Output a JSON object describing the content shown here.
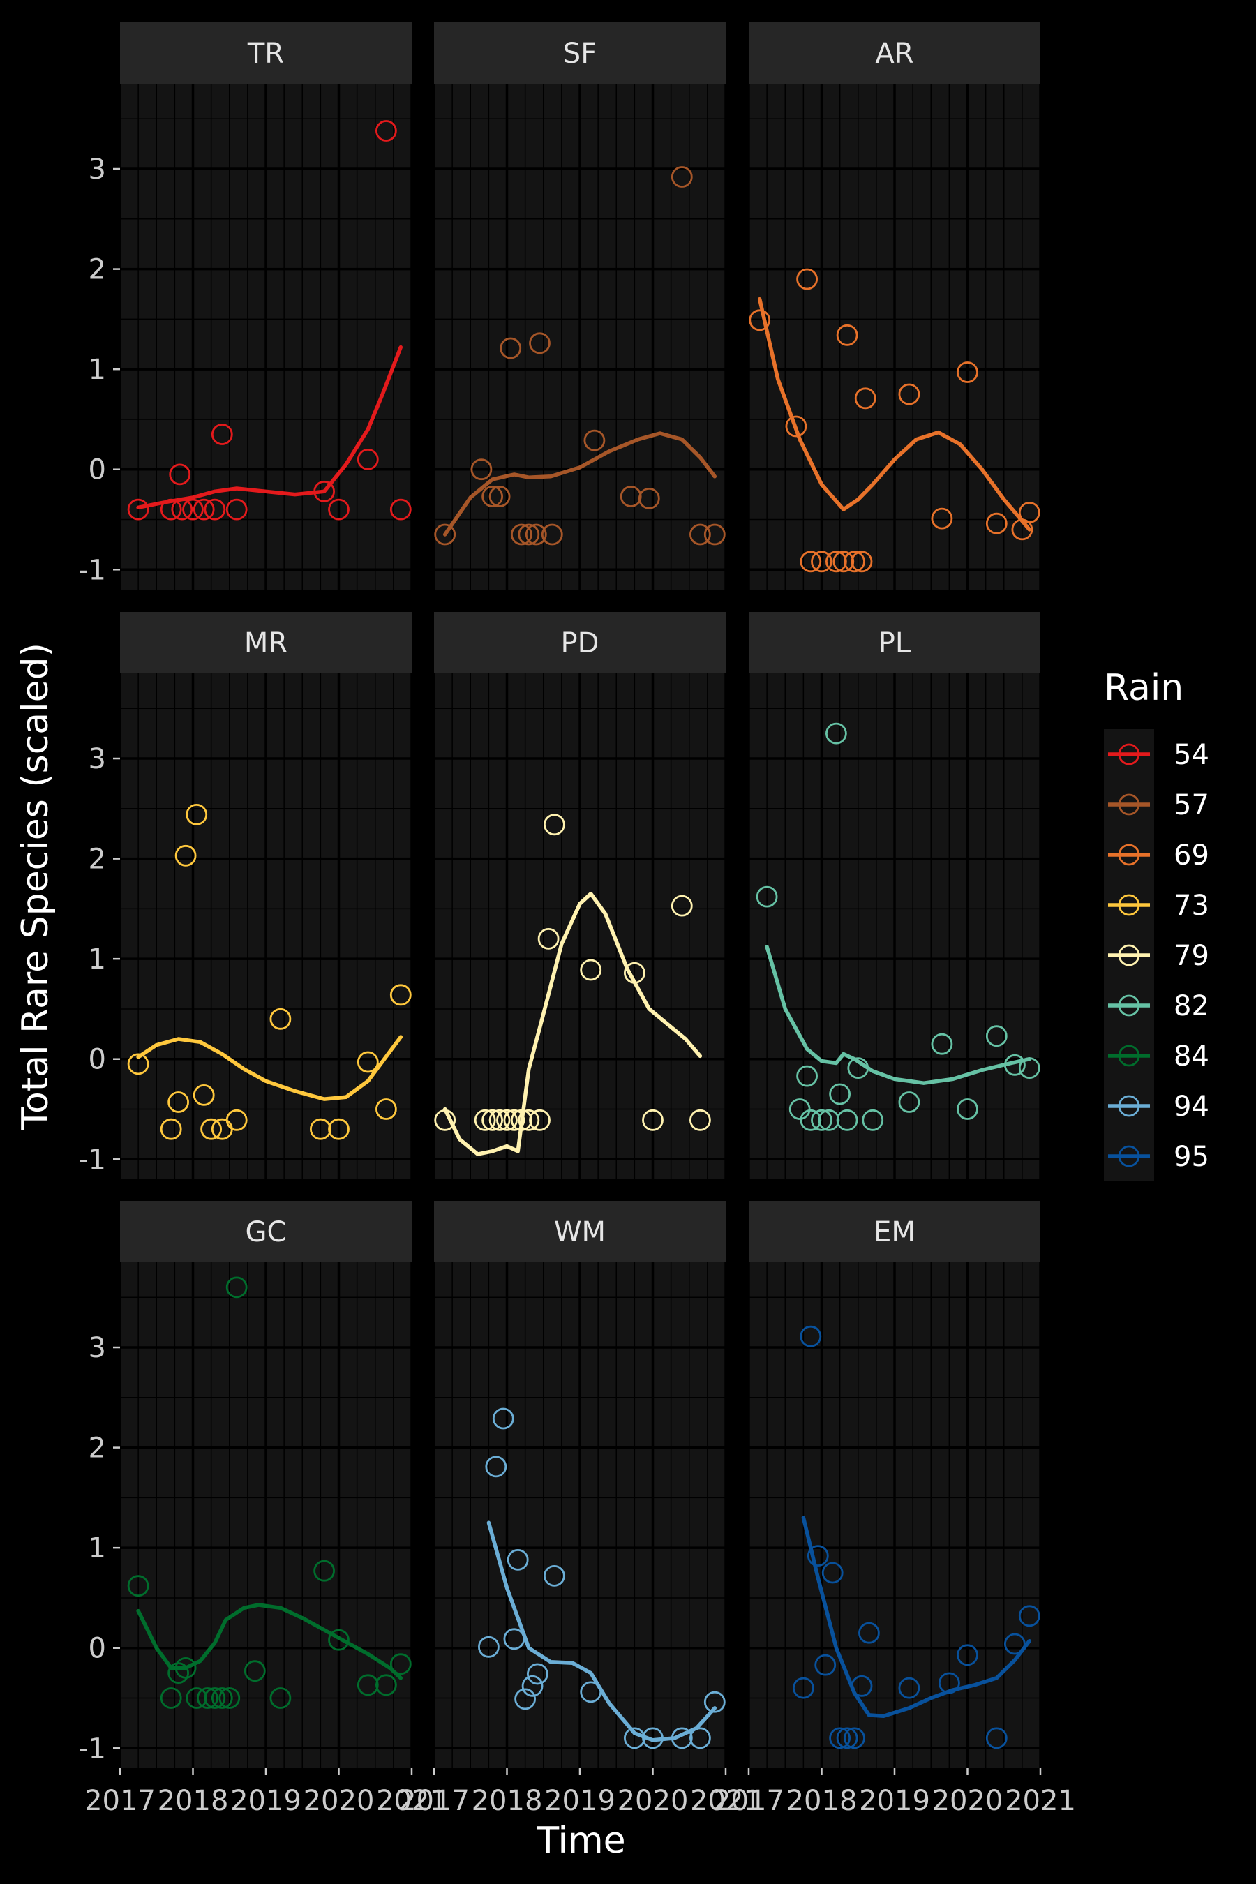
{
  "chart_data": {
    "type": "scatter",
    "facet_wrap": "3x3",
    "xlabel": "Time",
    "ylabel": "Total Rare Species (scaled)",
    "x_ticks": [
      "2017",
      "2018",
      "2019",
      "2020",
      "2021"
    ],
    "y_ticks": [
      "-1",
      "0",
      "1",
      "2",
      "3"
    ],
    "xlim": [
      2017,
      2021
    ],
    "ylim": [
      -1.2,
      3.85
    ],
    "grid": true,
    "legend": {
      "title": "Rain",
      "placement": "right",
      "entries": [
        "54",
        "57",
        "69",
        "73",
        "79",
        "82",
        "84",
        "94",
        "95"
      ]
    },
    "colors": {
      "54": "#E41A1C",
      "57": "#A65628",
      "69": "#E8722A",
      "73": "#FFC83D",
      "79": "#FFF2B0",
      "82": "#66C2A5",
      "84": "#006D2C",
      "94": "#6BAED6",
      "95": "#08519C"
    },
    "series": [
      {
        "name": "TR",
        "rain": "54",
        "points": [
          [
            2017.25,
            -0.4
          ],
          [
            2017.7,
            -0.4
          ],
          [
            2017.82,
            -0.05
          ],
          [
            2017.85,
            -0.4
          ],
          [
            2018.0,
            -0.4
          ],
          [
            2018.15,
            -0.4
          ],
          [
            2018.3,
            -0.4
          ],
          [
            2018.4,
            0.35
          ],
          [
            2018.6,
            -0.4
          ],
          [
            2019.8,
            -0.22
          ],
          [
            2020.0,
            -0.4
          ],
          [
            2020.4,
            0.1
          ],
          [
            2020.65,
            3.38
          ],
          [
            2020.85,
            -0.4
          ]
        ],
        "smooth": [
          [
            2017.25,
            -0.38
          ],
          [
            2017.6,
            -0.33
          ],
          [
            2018.0,
            -0.28
          ],
          [
            2018.3,
            -0.22
          ],
          [
            2018.6,
            -0.19
          ],
          [
            2019.0,
            -0.22
          ],
          [
            2019.4,
            -0.25
          ],
          [
            2019.8,
            -0.22
          ],
          [
            2020.1,
            0.05
          ],
          [
            2020.4,
            0.4
          ],
          [
            2020.6,
            0.75
          ],
          [
            2020.85,
            1.22
          ]
        ]
      },
      {
        "name": "SF",
        "rain": "57",
        "points": [
          [
            2017.15,
            -0.65
          ],
          [
            2017.65,
            0.0
          ],
          [
            2017.8,
            -0.27
          ],
          [
            2017.9,
            -0.27
          ],
          [
            2018.05,
            1.21
          ],
          [
            2018.2,
            -0.65
          ],
          [
            2018.3,
            -0.65
          ],
          [
            2018.4,
            -0.65
          ],
          [
            2018.45,
            1.26
          ],
          [
            2018.62,
            -0.65
          ],
          [
            2019.2,
            0.29
          ],
          [
            2019.7,
            -0.27
          ],
          [
            2019.95,
            -0.29
          ],
          [
            2020.4,
            2.92
          ],
          [
            2020.65,
            -0.65
          ],
          [
            2020.85,
            -0.65
          ]
        ],
        "smooth": [
          [
            2017.15,
            -0.65
          ],
          [
            2017.5,
            -0.28
          ],
          [
            2017.8,
            -0.1
          ],
          [
            2018.1,
            -0.05
          ],
          [
            2018.3,
            -0.08
          ],
          [
            2018.6,
            -0.07
          ],
          [
            2019.0,
            0.02
          ],
          [
            2019.4,
            0.18
          ],
          [
            2019.8,
            0.3
          ],
          [
            2020.1,
            0.36
          ],
          [
            2020.4,
            0.3
          ],
          [
            2020.65,
            0.12
          ],
          [
            2020.85,
            -0.07
          ]
        ]
      },
      {
        "name": "AR",
        "rain": "69",
        "points": [
          [
            2017.15,
            1.49
          ],
          [
            2017.65,
            0.43
          ],
          [
            2017.8,
            1.9
          ],
          [
            2017.85,
            -0.92
          ],
          [
            2018.0,
            -0.92
          ],
          [
            2018.2,
            -0.92
          ],
          [
            2018.3,
            -0.92
          ],
          [
            2018.35,
            1.34
          ],
          [
            2018.45,
            -0.92
          ],
          [
            2018.55,
            -0.92
          ],
          [
            2018.6,
            0.71
          ],
          [
            2019.2,
            0.75
          ],
          [
            2019.65,
            -0.49
          ],
          [
            2020.0,
            0.97
          ],
          [
            2020.4,
            -0.54
          ],
          [
            2020.75,
            -0.6
          ],
          [
            2020.85,
            -0.43
          ]
        ],
        "smooth": [
          [
            2017.15,
            1.7
          ],
          [
            2017.4,
            0.9
          ],
          [
            2017.7,
            0.3
          ],
          [
            2018.0,
            -0.15
          ],
          [
            2018.3,
            -0.4
          ],
          [
            2018.5,
            -0.3
          ],
          [
            2018.7,
            -0.15
          ],
          [
            2019.0,
            0.1
          ],
          [
            2019.3,
            0.3
          ],
          [
            2019.6,
            0.37
          ],
          [
            2019.9,
            0.25
          ],
          [
            2020.2,
            0.0
          ],
          [
            2020.5,
            -0.3
          ],
          [
            2020.85,
            -0.6
          ]
        ]
      },
      {
        "name": "MR",
        "rain": "73",
        "points": [
          [
            2017.25,
            -0.05
          ],
          [
            2017.7,
            -0.7
          ],
          [
            2017.8,
            -0.43
          ],
          [
            2017.9,
            2.03
          ],
          [
            2018.05,
            2.44
          ],
          [
            2018.15,
            -0.36
          ],
          [
            2018.25,
            -0.7
          ],
          [
            2018.4,
            -0.7
          ],
          [
            2018.6,
            -0.61
          ],
          [
            2019.2,
            0.4
          ],
          [
            2019.75,
            -0.7
          ],
          [
            2020.0,
            -0.7
          ],
          [
            2020.4,
            -0.03
          ],
          [
            2020.65,
            -0.5
          ],
          [
            2020.85,
            0.64
          ]
        ],
        "smooth": [
          [
            2017.25,
            0.02
          ],
          [
            2017.5,
            0.14
          ],
          [
            2017.8,
            0.2
          ],
          [
            2018.1,
            0.17
          ],
          [
            2018.4,
            0.05
          ],
          [
            2018.7,
            -0.1
          ],
          [
            2019.0,
            -0.22
          ],
          [
            2019.4,
            -0.32
          ],
          [
            2019.8,
            -0.4
          ],
          [
            2020.1,
            -0.38
          ],
          [
            2020.4,
            -0.22
          ],
          [
            2020.85,
            0.22
          ]
        ]
      },
      {
        "name": "PD",
        "rain": "79",
        "points": [
          [
            2017.15,
            -0.61
          ],
          [
            2017.7,
            -0.61
          ],
          [
            2017.8,
            -0.61
          ],
          [
            2017.9,
            -0.61
          ],
          [
            2018.0,
            -0.61
          ],
          [
            2018.1,
            -0.61
          ],
          [
            2018.2,
            -0.61
          ],
          [
            2018.3,
            -0.61
          ],
          [
            2018.45,
            -0.61
          ],
          [
            2018.57,
            1.2
          ],
          [
            2018.65,
            2.34
          ],
          [
            2019.15,
            0.89
          ],
          [
            2019.75,
            0.86
          ],
          [
            2020.0,
            -0.61
          ],
          [
            2020.4,
            1.53
          ],
          [
            2020.65,
            -0.61
          ]
        ],
        "smooth": [
          [
            2017.15,
            -0.5
          ],
          [
            2017.35,
            -0.8
          ],
          [
            2017.6,
            -0.95
          ],
          [
            2017.8,
            -0.92
          ],
          [
            2018.0,
            -0.87
          ],
          [
            2018.15,
            -0.92
          ],
          [
            2018.3,
            -0.1
          ],
          [
            2018.5,
            0.45
          ],
          [
            2018.75,
            1.15
          ],
          [
            2019.0,
            1.55
          ],
          [
            2019.15,
            1.65
          ],
          [
            2019.35,
            1.45
          ],
          [
            2019.65,
            0.9
          ],
          [
            2019.95,
            0.5
          ],
          [
            2020.2,
            0.35
          ],
          [
            2020.45,
            0.2
          ],
          [
            2020.65,
            0.03
          ]
        ]
      },
      {
        "name": "PL",
        "rain": "82",
        "points": [
          [
            2017.25,
            1.62
          ],
          [
            2017.7,
            -0.5
          ],
          [
            2017.8,
            -0.17
          ],
          [
            2017.85,
            -0.61
          ],
          [
            2018.0,
            -0.61
          ],
          [
            2018.1,
            -0.61
          ],
          [
            2018.2,
            3.25
          ],
          [
            2018.25,
            -0.35
          ],
          [
            2018.35,
            -0.61
          ],
          [
            2018.5,
            -0.09
          ],
          [
            2018.7,
            -0.61
          ],
          [
            2019.2,
            -0.43
          ],
          [
            2019.65,
            0.15
          ],
          [
            2020.0,
            -0.5
          ],
          [
            2020.4,
            0.23
          ],
          [
            2020.65,
            -0.06
          ],
          [
            2020.85,
            -0.09
          ]
        ],
        "smooth": [
          [
            2017.25,
            1.12
          ],
          [
            2017.5,
            0.5
          ],
          [
            2017.8,
            0.1
          ],
          [
            2018.0,
            -0.02
          ],
          [
            2018.2,
            -0.04
          ],
          [
            2018.3,
            0.05
          ],
          [
            2018.45,
            0.0
          ],
          [
            2018.7,
            -0.12
          ],
          [
            2019.0,
            -0.2
          ],
          [
            2019.4,
            -0.24
          ],
          [
            2019.8,
            -0.2
          ],
          [
            2020.2,
            -0.11
          ],
          [
            2020.6,
            -0.04
          ],
          [
            2020.85,
            0.0
          ]
        ]
      },
      {
        "name": "GC",
        "rain": "84",
        "points": [
          [
            2017.25,
            0.62
          ],
          [
            2017.7,
            -0.5
          ],
          [
            2017.8,
            -0.25
          ],
          [
            2017.9,
            -0.2
          ],
          [
            2018.05,
            -0.5
          ],
          [
            2018.2,
            -0.5
          ],
          [
            2018.3,
            -0.5
          ],
          [
            2018.4,
            -0.5
          ],
          [
            2018.5,
            -0.5
          ],
          [
            2018.6,
            3.6
          ],
          [
            2018.85,
            -0.23
          ],
          [
            2019.2,
            -0.5
          ],
          [
            2019.8,
            0.77
          ],
          [
            2020.0,
            0.08
          ],
          [
            2020.4,
            -0.37
          ],
          [
            2020.65,
            -0.37
          ],
          [
            2020.85,
            -0.16
          ]
        ],
        "smooth": [
          [
            2017.25,
            0.37
          ],
          [
            2017.5,
            0.0
          ],
          [
            2017.7,
            -0.2
          ],
          [
            2017.9,
            -0.2
          ],
          [
            2018.1,
            -0.13
          ],
          [
            2018.3,
            0.05
          ],
          [
            2018.45,
            0.28
          ],
          [
            2018.7,
            0.4
          ],
          [
            2018.9,
            0.43
          ],
          [
            2019.2,
            0.4
          ],
          [
            2019.5,
            0.3
          ],
          [
            2019.8,
            0.18
          ],
          [
            2020.1,
            0.06
          ],
          [
            2020.4,
            -0.06
          ],
          [
            2020.7,
            -0.2
          ],
          [
            2020.85,
            -0.3
          ]
        ]
      },
      {
        "name": "WM",
        "rain": "94",
        "points": [
          [
            2017.75,
            0.01
          ],
          [
            2017.85,
            1.81
          ],
          [
            2017.95,
            2.29
          ],
          [
            2018.1,
            0.09
          ],
          [
            2018.15,
            0.88
          ],
          [
            2018.25,
            -0.51
          ],
          [
            2018.35,
            -0.38
          ],
          [
            2018.42,
            -0.26
          ],
          [
            2018.65,
            0.72
          ],
          [
            2019.15,
            -0.44
          ],
          [
            2019.75,
            -0.9
          ],
          [
            2020.0,
            -0.9
          ],
          [
            2020.4,
            -0.9
          ],
          [
            2020.65,
            -0.9
          ],
          [
            2020.85,
            -0.54
          ]
        ],
        "smooth": [
          [
            2017.75,
            1.25
          ],
          [
            2018.0,
            0.6
          ],
          [
            2018.3,
            0.0
          ],
          [
            2018.6,
            -0.14
          ],
          [
            2018.9,
            -0.15
          ],
          [
            2019.15,
            -0.25
          ],
          [
            2019.4,
            -0.55
          ],
          [
            2019.75,
            -0.85
          ],
          [
            2020.0,
            -0.92
          ],
          [
            2020.3,
            -0.9
          ],
          [
            2020.6,
            -0.8
          ],
          [
            2020.85,
            -0.6
          ]
        ]
      },
      {
        "name": "EM",
        "rain": "95",
        "points": [
          [
            2017.75,
            -0.4
          ],
          [
            2017.85,
            3.11
          ],
          [
            2017.95,
            0.92
          ],
          [
            2018.05,
            -0.17
          ],
          [
            2018.15,
            0.75
          ],
          [
            2018.25,
            -0.9
          ],
          [
            2018.35,
            -0.9
          ],
          [
            2018.45,
            -0.9
          ],
          [
            2018.55,
            -0.38
          ],
          [
            2018.65,
            0.15
          ],
          [
            2019.2,
            -0.4
          ],
          [
            2019.75,
            -0.35
          ],
          [
            2020.0,
            -0.07
          ],
          [
            2020.4,
            -0.9
          ],
          [
            2020.65,
            0.04
          ],
          [
            2020.85,
            0.32
          ]
        ],
        "smooth": [
          [
            2017.75,
            1.3
          ],
          [
            2017.95,
            0.7
          ],
          [
            2018.2,
            0.0
          ],
          [
            2018.45,
            -0.45
          ],
          [
            2018.65,
            -0.67
          ],
          [
            2018.85,
            -0.68
          ],
          [
            2019.2,
            -0.6
          ],
          [
            2019.5,
            -0.5
          ],
          [
            2019.8,
            -0.42
          ],
          [
            2020.1,
            -0.37
          ],
          [
            2020.4,
            -0.3
          ],
          [
            2020.65,
            -0.12
          ],
          [
            2020.85,
            0.07
          ]
        ]
      }
    ]
  }
}
